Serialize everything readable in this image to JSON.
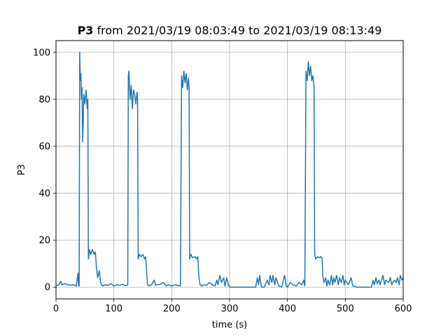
{
  "chart_data": {
    "type": "line",
    "title": {
      "bold": "P3",
      "rest": " from 2021/03/19 08:03:49 to 2021/03/19 08:13:49"
    },
    "xlabel": "time (s)",
    "ylabel": "P3",
    "xlim": [
      0,
      600
    ],
    "ylim": [
      -5,
      105
    ],
    "xticks": [
      0,
      100,
      200,
      300,
      400,
      500,
      600
    ],
    "yticks": [
      0,
      20,
      40,
      60,
      80,
      100
    ],
    "grid": true,
    "series": [
      {
        "color": "#1f77b4",
        "points": [
          [
            0,
            0.5
          ],
          [
            5,
            1
          ],
          [
            8,
            2.5
          ],
          [
            10,
            1
          ],
          [
            15,
            1.5
          ],
          [
            20,
            1
          ],
          [
            25,
            0.8
          ],
          [
            30,
            1
          ],
          [
            35,
            0.5
          ],
          [
            38,
            6
          ],
          [
            39,
            0.5
          ],
          [
            40,
            0.5
          ],
          [
            41,
            100
          ],
          [
            42,
            88
          ],
          [
            43,
            91
          ],
          [
            44,
            80
          ],
          [
            45,
            85
          ],
          [
            46,
            62
          ],
          [
            47,
            70
          ],
          [
            48,
            82
          ],
          [
            50,
            78
          ],
          [
            52,
            84
          ],
          [
            54,
            76
          ],
          [
            55,
            80
          ],
          [
            56,
            12
          ],
          [
            58,
            16
          ],
          [
            60,
            14
          ],
          [
            63,
            16
          ],
          [
            66,
            14
          ],
          [
            68,
            15
          ],
          [
            70,
            8
          ],
          [
            72,
            4
          ],
          [
            75,
            7
          ],
          [
            77,
            2
          ],
          [
            80,
            0.5
          ],
          [
            85,
            1
          ],
          [
            90,
            0.8
          ],
          [
            95,
            1.5
          ],
          [
            100,
            0.5
          ],
          [
            105,
            1
          ],
          [
            110,
            0.8
          ],
          [
            115,
            1.2
          ],
          [
            120,
            0.6
          ],
          [
            124,
            1
          ],
          [
            125,
            90
          ],
          [
            126,
            92
          ],
          [
            128,
            80
          ],
          [
            130,
            86
          ],
          [
            132,
            76
          ],
          [
            134,
            84
          ],
          [
            136,
            82
          ],
          [
            138,
            78
          ],
          [
            140,
            83
          ],
          [
            141,
            80
          ],
          [
            142,
            12
          ],
          [
            144,
            14
          ],
          [
            147,
            13
          ],
          [
            150,
            14
          ],
          [
            153,
            12
          ],
          [
            155,
            13
          ],
          [
            157,
            5
          ],
          [
            158,
            1.5
          ],
          [
            160,
            0.5
          ],
          [
            165,
            1
          ],
          [
            170,
            3
          ],
          [
            172,
            0.8
          ],
          [
            180,
            1.2
          ],
          [
            185,
            2
          ],
          [
            190,
            0.6
          ],
          [
            195,
            1
          ],
          [
            200,
            0.5
          ],
          [
            205,
            1
          ],
          [
            210,
            0.8
          ],
          [
            215,
            0.5
          ],
          [
            217,
            90
          ],
          [
            219,
            85
          ],
          [
            221,
            92
          ],
          [
            223,
            87
          ],
          [
            225,
            91
          ],
          [
            227,
            84
          ],
          [
            229,
            89
          ],
          [
            230,
            85
          ],
          [
            231,
            12
          ],
          [
            233,
            14
          ],
          [
            236,
            12.5
          ],
          [
            240,
            13
          ],
          [
            243,
            12
          ],
          [
            245,
            13
          ],
          [
            247,
            4
          ],
          [
            249,
            1
          ],
          [
            252,
            0.5
          ],
          [
            255,
            1
          ],
          [
            260,
            0.8
          ],
          [
            265,
            2
          ],
          [
            270,
            1
          ],
          [
            275,
            0.5
          ],
          [
            278,
            3
          ],
          [
            280,
            1
          ],
          [
            283,
            5
          ],
          [
            286,
            2
          ],
          [
            290,
            4
          ],
          [
            292,
            0.5
          ],
          [
            295,
            4
          ],
          [
            298,
            1
          ],
          [
            300,
            0
          ],
          [
            310,
            0
          ],
          [
            320,
            0
          ],
          [
            330,
            0
          ],
          [
            340,
            0
          ],
          [
            345,
            0
          ],
          [
            348,
            4
          ],
          [
            350,
            1
          ],
          [
            352,
            5
          ],
          [
            355,
            0
          ],
          [
            360,
            0
          ],
          [
            365,
            3
          ],
          [
            368,
            1
          ],
          [
            370,
            5
          ],
          [
            373,
            2
          ],
          [
            375,
            5
          ],
          [
            378,
            1
          ],
          [
            380,
            4
          ],
          [
            385,
            0.5
          ],
          [
            390,
            0
          ],
          [
            395,
            5
          ],
          [
            398,
            0.5
          ],
          [
            400,
            0
          ],
          [
            405,
            2
          ],
          [
            410,
            1
          ],
          [
            415,
            0.5
          ],
          [
            420,
            2
          ],
          [
            425,
            1
          ],
          [
            428,
            3
          ],
          [
            430,
            0.5
          ],
          [
            432,
            92
          ],
          [
            434,
            88
          ],
          [
            436,
            96
          ],
          [
            438,
            90
          ],
          [
            440,
            94
          ],
          [
            442,
            88
          ],
          [
            444,
            90
          ],
          [
            446,
            85
          ],
          [
            447,
            14
          ],
          [
            449,
            12
          ],
          [
            452,
            13
          ],
          [
            455,
            12.5
          ],
          [
            458,
            13
          ],
          [
            460,
            12
          ],
          [
            461,
            5
          ],
          [
            463,
            2
          ],
          [
            466,
            4
          ],
          [
            468,
            0.5
          ],
          [
            470,
            3
          ],
          [
            473,
            1
          ],
          [
            476,
            5
          ],
          [
            478,
            1
          ],
          [
            480,
            4
          ],
          [
            482,
            2
          ],
          [
            485,
            5
          ],
          [
            488,
            1
          ],
          [
            490,
            4
          ],
          [
            493,
            2
          ],
          [
            496,
            5
          ],
          [
            498,
            1
          ],
          [
            500,
            3
          ],
          [
            505,
            1
          ],
          [
            510,
            4
          ],
          [
            513,
            0.5
          ],
          [
            520,
            0
          ],
          [
            530,
            0
          ],
          [
            540,
            0
          ],
          [
            545,
            0
          ],
          [
            548,
            3
          ],
          [
            550,
            1
          ],
          [
            553,
            4
          ],
          [
            555,
            1.5
          ],
          [
            558,
            3
          ],
          [
            560,
            1
          ],
          [
            565,
            5
          ],
          [
            568,
            1
          ],
          [
            570,
            3
          ],
          [
            575,
            2
          ],
          [
            578,
            4
          ],
          [
            580,
            1
          ],
          [
            585,
            3
          ],
          [
            588,
            2
          ],
          [
            590,
            4
          ],
          [
            593,
            1
          ],
          [
            595,
            5
          ],
          [
            598,
            3
          ],
          [
            600,
            4
          ]
        ]
      }
    ]
  }
}
